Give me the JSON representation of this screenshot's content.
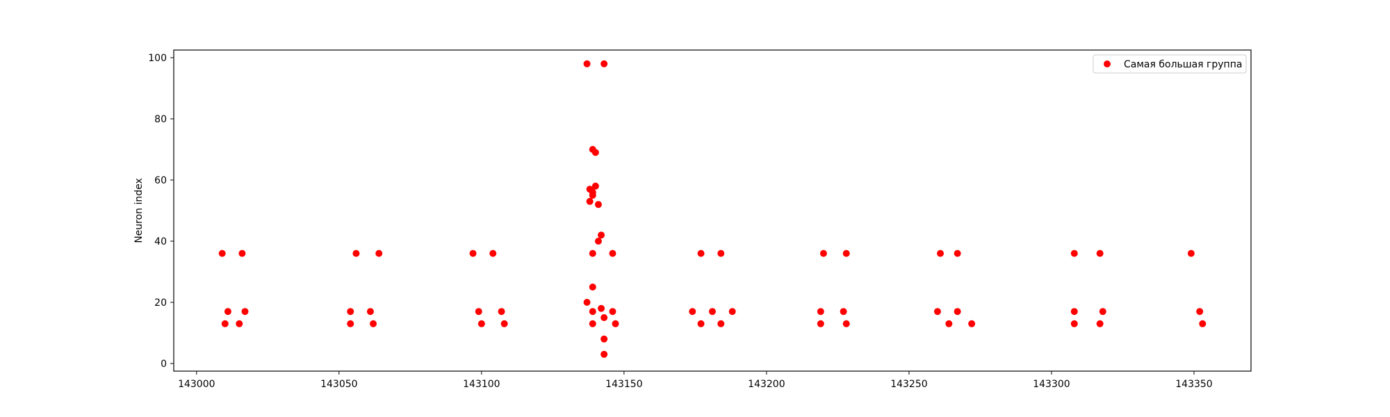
{
  "chart_data": {
    "type": "scatter",
    "title": "",
    "xlabel": "",
    "ylabel": "Neuron index",
    "xlim": [
      142992,
      143370
    ],
    "ylim": [
      -2.5,
      102.5
    ],
    "xticks": [
      143000,
      143050,
      143100,
      143150,
      143200,
      143250,
      143300,
      143350
    ],
    "yticks": [
      0,
      20,
      40,
      60,
      80,
      100
    ],
    "grid": false,
    "legend_position": "top-right",
    "series": [
      {
        "name": "Самая большая группа",
        "color": "#ff0000",
        "marker": "circle",
        "points": [
          {
            "x": 143009,
            "y": 36
          },
          {
            "x": 143016,
            "y": 36
          },
          {
            "x": 143011,
            "y": 17
          },
          {
            "x": 143017,
            "y": 17
          },
          {
            "x": 143010,
            "y": 13
          },
          {
            "x": 143015,
            "y": 13
          },
          {
            "x": 143056,
            "y": 36
          },
          {
            "x": 143064,
            "y": 36
          },
          {
            "x": 143054,
            "y": 17
          },
          {
            "x": 143061,
            "y": 17
          },
          {
            "x": 143054,
            "y": 13
          },
          {
            "x": 143062,
            "y": 13
          },
          {
            "x": 143097,
            "y": 36
          },
          {
            "x": 143104,
            "y": 36
          },
          {
            "x": 143099,
            "y": 17
          },
          {
            "x": 143107,
            "y": 17
          },
          {
            "x": 143100,
            "y": 13
          },
          {
            "x": 143108,
            "y": 13
          },
          {
            "x": 143137,
            "y": 98
          },
          {
            "x": 143143,
            "y": 98
          },
          {
            "x": 143139,
            "y": 70
          },
          {
            "x": 143140,
            "y": 69
          },
          {
            "x": 143140,
            "y": 58
          },
          {
            "x": 143138,
            "y": 57
          },
          {
            "x": 143139,
            "y": 56
          },
          {
            "x": 143139,
            "y": 55
          },
          {
            "x": 143138,
            "y": 53
          },
          {
            "x": 143141,
            "y": 52
          },
          {
            "x": 143142,
            "y": 42
          },
          {
            "x": 143141,
            "y": 40
          },
          {
            "x": 143139,
            "y": 36
          },
          {
            "x": 143146,
            "y": 36
          },
          {
            "x": 143139,
            "y": 25
          },
          {
            "x": 143137,
            "y": 20
          },
          {
            "x": 143142,
            "y": 18
          },
          {
            "x": 143139,
            "y": 17
          },
          {
            "x": 143146,
            "y": 17
          },
          {
            "x": 143143,
            "y": 15
          },
          {
            "x": 143139,
            "y": 13
          },
          {
            "x": 143147,
            "y": 13
          },
          {
            "x": 143143,
            "y": 8
          },
          {
            "x": 143143,
            "y": 3
          },
          {
            "x": 143177,
            "y": 36
          },
          {
            "x": 143184,
            "y": 36
          },
          {
            "x": 143174,
            "y": 17
          },
          {
            "x": 143181,
            "y": 17
          },
          {
            "x": 143188,
            "y": 17
          },
          {
            "x": 143177,
            "y": 13
          },
          {
            "x": 143184,
            "y": 13
          },
          {
            "x": 143220,
            "y": 36
          },
          {
            "x": 143228,
            "y": 36
          },
          {
            "x": 143219,
            "y": 17
          },
          {
            "x": 143227,
            "y": 17
          },
          {
            "x": 143219,
            "y": 13
          },
          {
            "x": 143228,
            "y": 13
          },
          {
            "x": 143261,
            "y": 36
          },
          {
            "x": 143267,
            "y": 36
          },
          {
            "x": 143260,
            "y": 17
          },
          {
            "x": 143267,
            "y": 17
          },
          {
            "x": 143264,
            "y": 13
          },
          {
            "x": 143272,
            "y": 13
          },
          {
            "x": 143308,
            "y": 36
          },
          {
            "x": 143317,
            "y": 36
          },
          {
            "x": 143308,
            "y": 17
          },
          {
            "x": 143318,
            "y": 17
          },
          {
            "x": 143308,
            "y": 13
          },
          {
            "x": 143317,
            "y": 13
          },
          {
            "x": 143349,
            "y": 36
          },
          {
            "x": 143352,
            "y": 17
          },
          {
            "x": 143353,
            "y": 13
          }
        ]
      }
    ]
  }
}
